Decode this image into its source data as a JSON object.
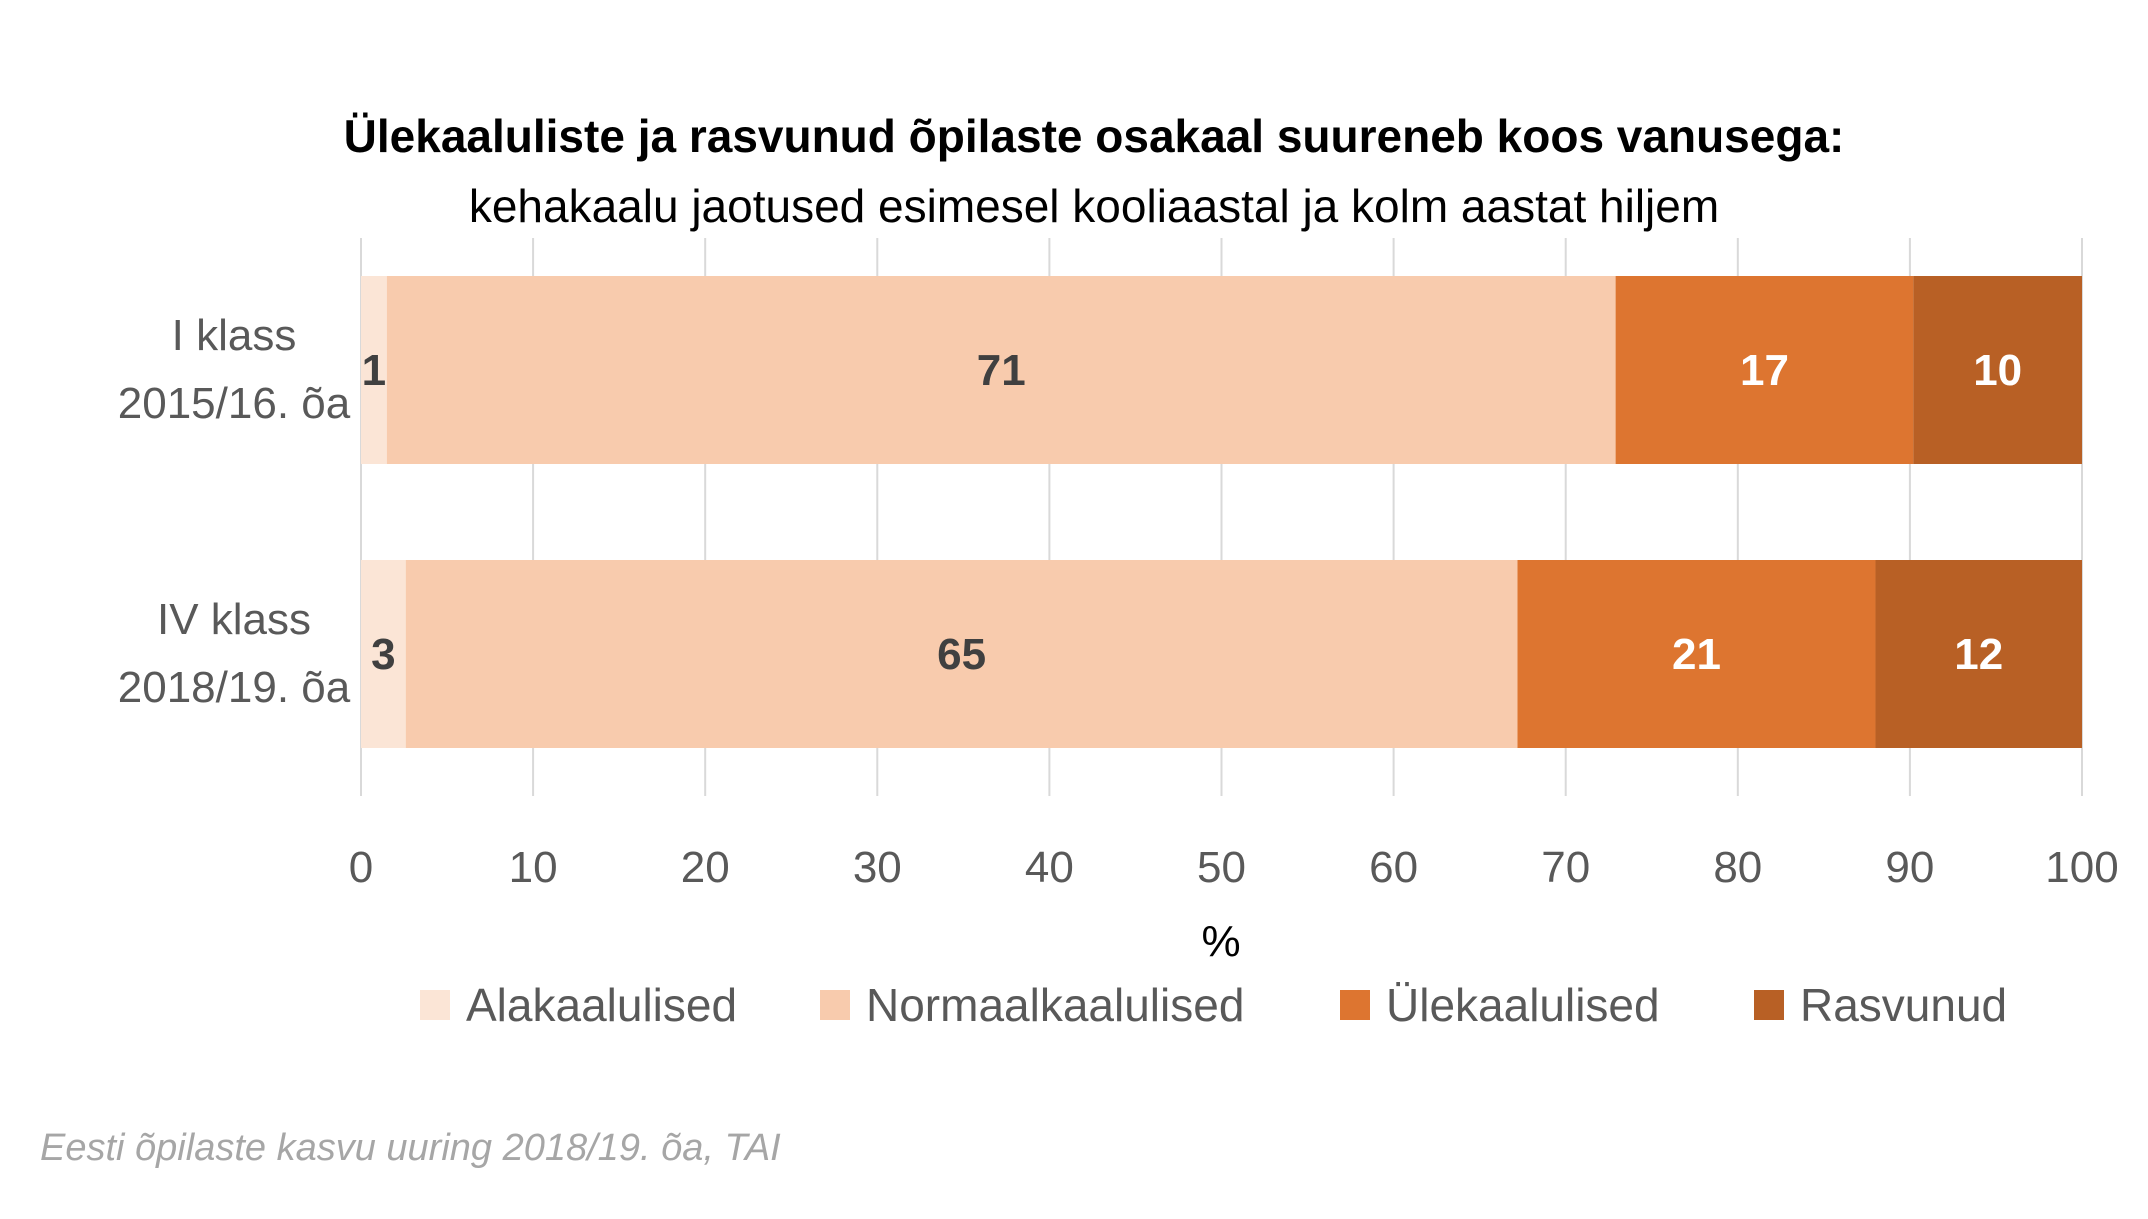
{
  "chart_data": {
    "type": "bar",
    "orientation": "horizontal",
    "stacked": true,
    "title": "Ülekaaluliste ja rasvunud õpilaste osakaal suureneb koos vanusega:",
    "subtitle": "kehakaalu jaotused esimesel kooliaastal ja kolm aastat hiljem",
    "categories": [
      [
        "I klass",
        "2015/16. õa"
      ],
      [
        "IV klass",
        "2018/19. õa"
      ]
    ],
    "series": [
      {
        "name": "Alakaalulised",
        "color": "#fbe5d6",
        "label_color": "#404040",
        "values": [
          1.5,
          2.6
        ],
        "labels": [
          "1",
          "3"
        ]
      },
      {
        "name": "Normaalkaalulised",
        "color": "#f8cbad",
        "label_color": "#404040",
        "values": [
          71.4,
          64.6
        ],
        "labels": [
          "71",
          "65"
        ]
      },
      {
        "name": "Ülekaalulised",
        "color": "#dd7530",
        "label_color": "#ffffff",
        "values": [
          17.3,
          20.8
        ],
        "labels": [
          "17",
          "21"
        ]
      },
      {
        "name": "Rasvunud",
        "color": "#b86025",
        "label_color": "#ffffff",
        "values": [
          9.8,
          12.0
        ],
        "labels": [
          "10",
          "12"
        ]
      }
    ],
    "xlim": [
      0,
      100
    ],
    "xticks": [
      0,
      10,
      20,
      30,
      40,
      50,
      60,
      70,
      80,
      90,
      100
    ],
    "xlabel": "%",
    "ylabel": "",
    "grid": true,
    "legend_position": "bottom",
    "source": "Eesti õpilaste kasvu uuring 2018/19. õa, TAI"
  }
}
